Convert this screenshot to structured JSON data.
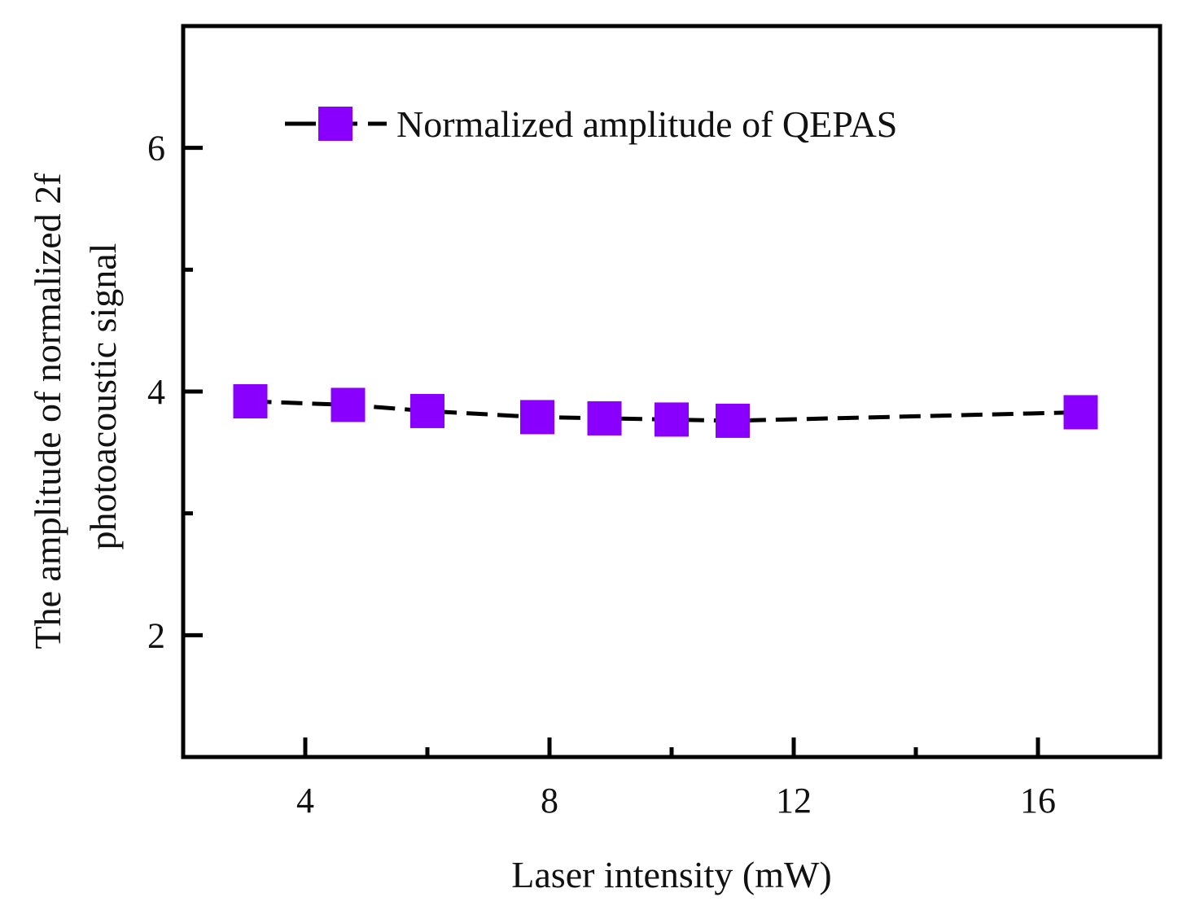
{
  "chart_data": {
    "type": "line",
    "title": "",
    "xlabel": "Laser intensity (mW)",
    "ylabel_line1": "The amplitude of normalized 2f",
    "ylabel_line2": "photoacoustic signal",
    "xlim": [
      2,
      18
    ],
    "ylim": [
      1,
      7
    ],
    "x_ticks": [
      4,
      8,
      12,
      16
    ],
    "x_minor_ticks": [
      6,
      10,
      14
    ],
    "y_ticks": [
      2,
      4,
      6
    ],
    "y_minor_ticks": [
      3,
      5
    ],
    "legend_position": "top",
    "grid": false,
    "series": [
      {
        "name": "Normalized amplitude of QEPAS",
        "color": "#8A00FF",
        "line_color": "#000000",
        "marker": "square",
        "x": [
          3.1,
          4.7,
          6.0,
          7.8,
          8.9,
          10.0,
          11.0,
          16.7
        ],
        "values": [
          3.92,
          3.89,
          3.84,
          3.79,
          3.78,
          3.77,
          3.76,
          3.83
        ]
      }
    ]
  }
}
